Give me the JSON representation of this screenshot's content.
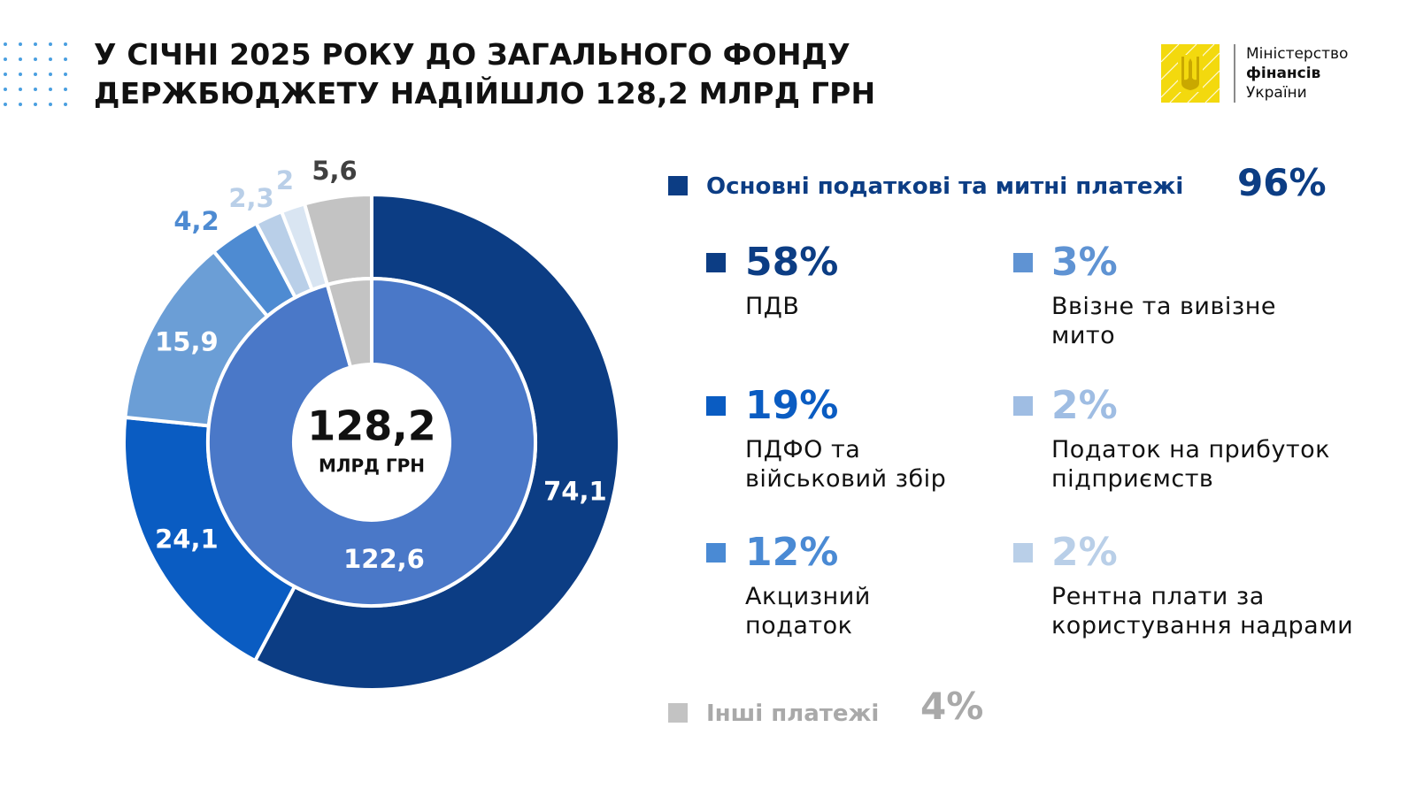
{
  "header": {
    "title_line1": "У СІЧНІ 2025 РОКУ ДО ЗАГАЛЬНОГО ФОНДУ",
    "title_line2": "ДЕРЖБЮДЖЕТУ НАДІЙШЛО 128,2 МЛРД ГРН"
  },
  "logo": {
    "line1": "Міністерство",
    "line2": "фінансів",
    "line3": "України",
    "color": "#f3d90e"
  },
  "colors": {
    "dark_navy": "#0c3d84",
    "blue": "#0a5cc2",
    "mid_blue": "#4a78c8",
    "light_blue": "#6b9ed6",
    "pale_blue": "#7aa7dc",
    "paler_blue": "#b9cfe8",
    "palest_blue": "#d9e5f2",
    "grey": "#c3c3c3",
    "other_text": "#a9a9a9"
  },
  "chart_data": {
    "type": "donut",
    "center_value": "128,2",
    "center_unit": "МЛРД ГРН",
    "outer_ring": [
      {
        "label": "74,1",
        "value": 74.1,
        "color": "#0c3d84",
        "label_color": "#ffffff"
      },
      {
        "label": "24,1",
        "value": 24.1,
        "color": "#0a5cc2",
        "label_color": "#ffffff"
      },
      {
        "label": "15,9",
        "value": 15.9,
        "color": "#6b9ed6",
        "label_color": "#ffffff"
      },
      {
        "label": "4,2",
        "value": 4.2,
        "color": "#4e8bd2",
        "label_color": "#4e8bd2"
      },
      {
        "label": "2,3",
        "value": 2.3,
        "color": "#b9cfe8",
        "label_color": "#b9cfe8"
      },
      {
        "label": "2",
        "value": 2.0,
        "color": "#d9e5f2",
        "label_color": "#b9cfe8"
      },
      {
        "label": "5,6",
        "value": 5.6,
        "color": "#c3c3c3",
        "label_color": "#404040"
      }
    ],
    "inner_ring": [
      {
        "label": "122,6",
        "value": 122.6,
        "color": "#4a78c8",
        "label_color": "#ffffff"
      },
      {
        "label": "",
        "value": 5.6,
        "color": "#c3c3c3",
        "label_color": "#ffffff"
      }
    ]
  },
  "legend": {
    "main": {
      "label": "Основні податкові та митні платежі",
      "percent": "96%",
      "color": "#0c3d84"
    },
    "items": [
      {
        "percent": "58%",
        "label_line1": "ПДВ",
        "label_line2": "",
        "color": "#0c3d84"
      },
      {
        "percent": "19%",
        "label_line1": "ПДФО та",
        "label_line2": "військовий збір",
        "color": "#0a5cc2"
      },
      {
        "percent": "12%",
        "label_line1": "Акцизний",
        "label_line2": "податок",
        "color": "#4a8ad4"
      },
      {
        "percent": "3%",
        "label_line1": "Ввізне та вивізне",
        "label_line2": "мито",
        "color": "#5f93d3"
      },
      {
        "percent": "2%",
        "label_line1": "Податок на прибуток",
        "label_line2": "підприємств",
        "color": "#9fbde3"
      },
      {
        "percent": "2%",
        "label_line1": "Рентна плати за",
        "label_line2": "користування надрами",
        "color": "#b9cfe8"
      }
    ],
    "other": {
      "label": "Інші платежі",
      "percent": "4%",
      "color": "#c3c3c3"
    }
  }
}
